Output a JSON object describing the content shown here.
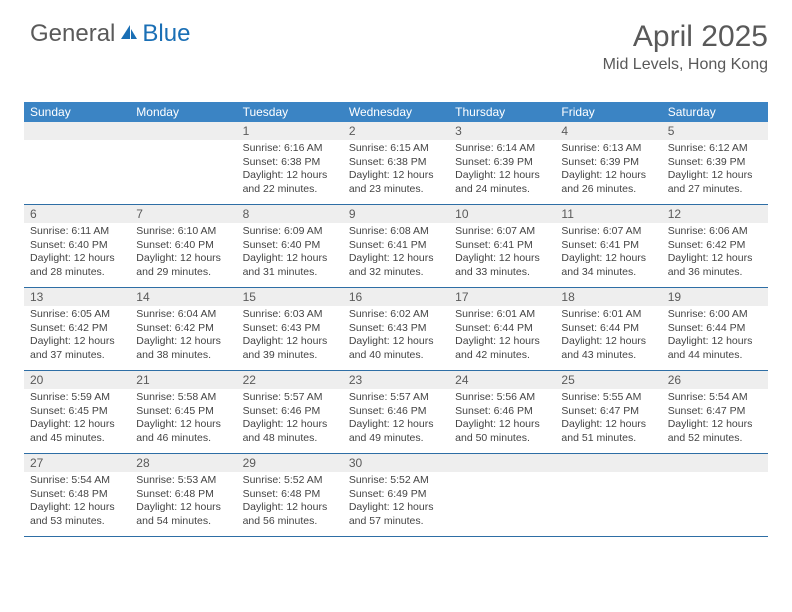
{
  "logo": {
    "text_general": "General",
    "text_blue": "Blue"
  },
  "title": "April 2025",
  "location": "Mid Levels, Hong Kong",
  "colors": {
    "header_bg": "#3b84c4",
    "header_text": "#ffffff",
    "gray_bar": "#eeeeee",
    "border": "#2e6ea5",
    "body_text": "#444444",
    "title_text": "#595959",
    "logo_gray": "#5a5a5a",
    "logo_blue": "#1a6fb5",
    "background": "#ffffff"
  },
  "typography": {
    "title_fontsize": 30,
    "location_fontsize": 16,
    "dayheader_fontsize": 12,
    "daynum_fontsize": 12,
    "body_fontsize": 10.5
  },
  "day_labels": [
    "Sunday",
    "Monday",
    "Tuesday",
    "Wednesday",
    "Thursday",
    "Friday",
    "Saturday"
  ],
  "weeks": [
    [
      {
        "daynum": "",
        "lines": []
      },
      {
        "daynum": "",
        "lines": []
      },
      {
        "daynum": "1",
        "lines": [
          "Sunrise: 6:16 AM",
          "Sunset: 6:38 PM",
          "Daylight: 12 hours",
          "and 22 minutes."
        ]
      },
      {
        "daynum": "2",
        "lines": [
          "Sunrise: 6:15 AM",
          "Sunset: 6:38 PM",
          "Daylight: 12 hours",
          "and 23 minutes."
        ]
      },
      {
        "daynum": "3",
        "lines": [
          "Sunrise: 6:14 AM",
          "Sunset: 6:39 PM",
          "Daylight: 12 hours",
          "and 24 minutes."
        ]
      },
      {
        "daynum": "4",
        "lines": [
          "Sunrise: 6:13 AM",
          "Sunset: 6:39 PM",
          "Daylight: 12 hours",
          "and 26 minutes."
        ]
      },
      {
        "daynum": "5",
        "lines": [
          "Sunrise: 6:12 AM",
          "Sunset: 6:39 PM",
          "Daylight: 12 hours",
          "and 27 minutes."
        ]
      }
    ],
    [
      {
        "daynum": "6",
        "lines": [
          "Sunrise: 6:11 AM",
          "Sunset: 6:40 PM",
          "Daylight: 12 hours",
          "and 28 minutes."
        ]
      },
      {
        "daynum": "7",
        "lines": [
          "Sunrise: 6:10 AM",
          "Sunset: 6:40 PM",
          "Daylight: 12 hours",
          "and 29 minutes."
        ]
      },
      {
        "daynum": "8",
        "lines": [
          "Sunrise: 6:09 AM",
          "Sunset: 6:40 PM",
          "Daylight: 12 hours",
          "and 31 minutes."
        ]
      },
      {
        "daynum": "9",
        "lines": [
          "Sunrise: 6:08 AM",
          "Sunset: 6:41 PM",
          "Daylight: 12 hours",
          "and 32 minutes."
        ]
      },
      {
        "daynum": "10",
        "lines": [
          "Sunrise: 6:07 AM",
          "Sunset: 6:41 PM",
          "Daylight: 12 hours",
          "and 33 minutes."
        ]
      },
      {
        "daynum": "11",
        "lines": [
          "Sunrise: 6:07 AM",
          "Sunset: 6:41 PM",
          "Daylight: 12 hours",
          "and 34 minutes."
        ]
      },
      {
        "daynum": "12",
        "lines": [
          "Sunrise: 6:06 AM",
          "Sunset: 6:42 PM",
          "Daylight: 12 hours",
          "and 36 minutes."
        ]
      }
    ],
    [
      {
        "daynum": "13",
        "lines": [
          "Sunrise: 6:05 AM",
          "Sunset: 6:42 PM",
          "Daylight: 12 hours",
          "and 37 minutes."
        ]
      },
      {
        "daynum": "14",
        "lines": [
          "Sunrise: 6:04 AM",
          "Sunset: 6:42 PM",
          "Daylight: 12 hours",
          "and 38 minutes."
        ]
      },
      {
        "daynum": "15",
        "lines": [
          "Sunrise: 6:03 AM",
          "Sunset: 6:43 PM",
          "Daylight: 12 hours",
          "and 39 minutes."
        ]
      },
      {
        "daynum": "16",
        "lines": [
          "Sunrise: 6:02 AM",
          "Sunset: 6:43 PM",
          "Daylight: 12 hours",
          "and 40 minutes."
        ]
      },
      {
        "daynum": "17",
        "lines": [
          "Sunrise: 6:01 AM",
          "Sunset: 6:44 PM",
          "Daylight: 12 hours",
          "and 42 minutes."
        ]
      },
      {
        "daynum": "18",
        "lines": [
          "Sunrise: 6:01 AM",
          "Sunset: 6:44 PM",
          "Daylight: 12 hours",
          "and 43 minutes."
        ]
      },
      {
        "daynum": "19",
        "lines": [
          "Sunrise: 6:00 AM",
          "Sunset: 6:44 PM",
          "Daylight: 12 hours",
          "and 44 minutes."
        ]
      }
    ],
    [
      {
        "daynum": "20",
        "lines": [
          "Sunrise: 5:59 AM",
          "Sunset: 6:45 PM",
          "Daylight: 12 hours",
          "and 45 minutes."
        ]
      },
      {
        "daynum": "21",
        "lines": [
          "Sunrise: 5:58 AM",
          "Sunset: 6:45 PM",
          "Daylight: 12 hours",
          "and 46 minutes."
        ]
      },
      {
        "daynum": "22",
        "lines": [
          "Sunrise: 5:57 AM",
          "Sunset: 6:46 PM",
          "Daylight: 12 hours",
          "and 48 minutes."
        ]
      },
      {
        "daynum": "23",
        "lines": [
          "Sunrise: 5:57 AM",
          "Sunset: 6:46 PM",
          "Daylight: 12 hours",
          "and 49 minutes."
        ]
      },
      {
        "daynum": "24",
        "lines": [
          "Sunrise: 5:56 AM",
          "Sunset: 6:46 PM",
          "Daylight: 12 hours",
          "and 50 minutes."
        ]
      },
      {
        "daynum": "25",
        "lines": [
          "Sunrise: 5:55 AM",
          "Sunset: 6:47 PM",
          "Daylight: 12 hours",
          "and 51 minutes."
        ]
      },
      {
        "daynum": "26",
        "lines": [
          "Sunrise: 5:54 AM",
          "Sunset: 6:47 PM",
          "Daylight: 12 hours",
          "and 52 minutes."
        ]
      }
    ],
    [
      {
        "daynum": "27",
        "lines": [
          "Sunrise: 5:54 AM",
          "Sunset: 6:48 PM",
          "Daylight: 12 hours",
          "and 53 minutes."
        ]
      },
      {
        "daynum": "28",
        "lines": [
          "Sunrise: 5:53 AM",
          "Sunset: 6:48 PM",
          "Daylight: 12 hours",
          "and 54 minutes."
        ]
      },
      {
        "daynum": "29",
        "lines": [
          "Sunrise: 5:52 AM",
          "Sunset: 6:48 PM",
          "Daylight: 12 hours",
          "and 56 minutes."
        ]
      },
      {
        "daynum": "30",
        "lines": [
          "Sunrise: 5:52 AM",
          "Sunset: 6:49 PM",
          "Daylight: 12 hours",
          "and 57 minutes."
        ]
      },
      {
        "daynum": "",
        "lines": []
      },
      {
        "daynum": "",
        "lines": []
      },
      {
        "daynum": "",
        "lines": []
      }
    ]
  ]
}
